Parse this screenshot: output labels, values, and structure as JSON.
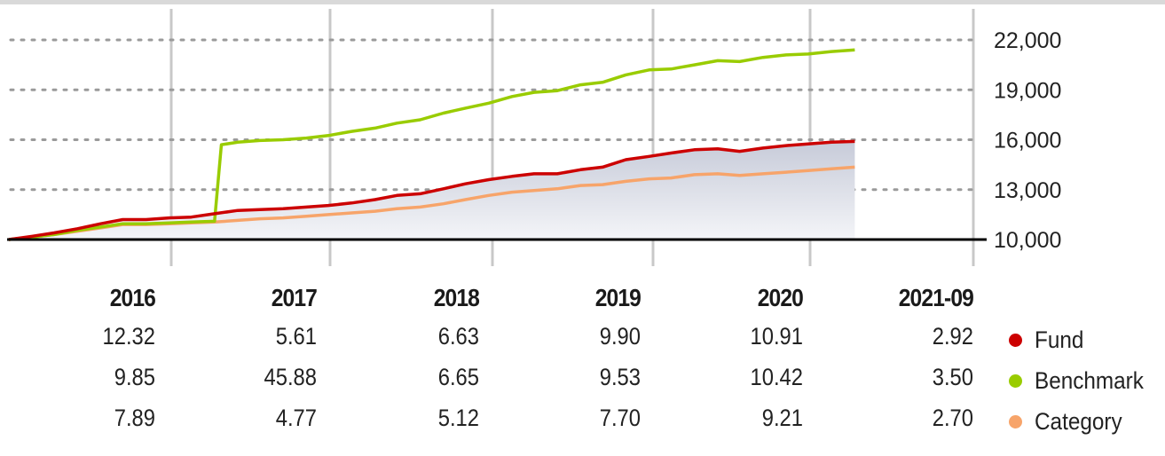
{
  "colors": {
    "fund": "#cc0000",
    "benchmark": "#99cc00",
    "category": "#f7a46a",
    "grid": "#c8c8c8",
    "baseline": "#000000"
  },
  "legend": [
    {
      "label": "Fund",
      "color": "#cc0000"
    },
    {
      "label": "Benchmark",
      "color": "#99cc00"
    },
    {
      "label": "Category",
      "color": "#f7a46a"
    }
  ],
  "returns_table": {
    "years": [
      "2016",
      "2017",
      "2018",
      "2019",
      "2020",
      "2021-09"
    ],
    "rows": [
      {
        "name": "Fund",
        "values": [
          "12.32",
          "5.61",
          "6.63",
          "9.90",
          "10.91",
          "2.92"
        ]
      },
      {
        "name": "Benchmark",
        "values": [
          "9.85",
          "45.88",
          "6.65",
          "9.53",
          "10.42",
          "3.50"
        ]
      },
      {
        "name": "Category",
        "values": [
          "7.89",
          "4.77",
          "5.12",
          "7.70",
          "9.21",
          "2.70"
        ]
      }
    ]
  },
  "chart_data": {
    "type": "line",
    "ylim": [
      10000,
      23000
    ],
    "yticks": [
      "22,000",
      "19,000",
      "16,000",
      "13,000",
      "10,000"
    ],
    "ytick_values": [
      22000,
      19000,
      16000,
      13000,
      10000
    ],
    "xlim": [
      2015.0,
      2021.75
    ],
    "year_boundaries": [
      2016,
      2017,
      2018,
      2019,
      2020,
      2021
    ],
    "grid": true,
    "legend_position": "bottom-right",
    "series": [
      {
        "name": "Fund",
        "color": "#cc0000",
        "points": [
          [
            2015.0,
            10000
          ],
          [
            2015.17,
            10200
          ],
          [
            2015.33,
            10400
          ],
          [
            2015.5,
            10650
          ],
          [
            2015.67,
            10950
          ],
          [
            2015.83,
            11200
          ],
          [
            2016.0,
            11200
          ],
          [
            2016.17,
            11300
          ],
          [
            2016.33,
            11350
          ],
          [
            2016.5,
            11550
          ],
          [
            2016.67,
            11750
          ],
          [
            2016.83,
            11800
          ],
          [
            2017.0,
            11850
          ],
          [
            2017.17,
            11950
          ],
          [
            2017.33,
            12050
          ],
          [
            2017.5,
            12200
          ],
          [
            2017.67,
            12400
          ],
          [
            2017.83,
            12650
          ],
          [
            2018.0,
            12750
          ],
          [
            2018.17,
            13050
          ],
          [
            2018.33,
            13350
          ],
          [
            2018.5,
            13600
          ],
          [
            2018.67,
            13800
          ],
          [
            2018.83,
            13950
          ],
          [
            2019.0,
            13950
          ],
          [
            2019.17,
            14200
          ],
          [
            2019.33,
            14350
          ],
          [
            2019.5,
            14800
          ],
          [
            2019.67,
            15000
          ],
          [
            2019.83,
            15200
          ],
          [
            2020.0,
            15400
          ],
          [
            2020.17,
            15450
          ],
          [
            2020.33,
            15300
          ],
          [
            2020.5,
            15500
          ],
          [
            2020.67,
            15650
          ],
          [
            2020.83,
            15750
          ],
          [
            2021.0,
            15850
          ],
          [
            2021.17,
            15900
          ]
        ]
      },
      {
        "name": "Benchmark",
        "color": "#99cc00",
        "points": [
          [
            2015.0,
            10000
          ],
          [
            2015.17,
            10150
          ],
          [
            2015.33,
            10300
          ],
          [
            2015.5,
            10550
          ],
          [
            2015.67,
            10750
          ],
          [
            2015.83,
            10950
          ],
          [
            2016.0,
            10950
          ],
          [
            2016.17,
            11000
          ],
          [
            2016.33,
            11050
          ],
          [
            2016.5,
            11100
          ],
          [
            2016.55,
            15700
          ],
          [
            2016.67,
            15850
          ],
          [
            2016.83,
            15950
          ],
          [
            2017.0,
            16000
          ],
          [
            2017.17,
            16100
          ],
          [
            2017.33,
            16250
          ],
          [
            2017.5,
            16500
          ],
          [
            2017.67,
            16700
          ],
          [
            2017.83,
            17000
          ],
          [
            2018.0,
            17200
          ],
          [
            2018.17,
            17600
          ],
          [
            2018.33,
            17900
          ],
          [
            2018.5,
            18200
          ],
          [
            2018.67,
            18600
          ],
          [
            2018.83,
            18850
          ],
          [
            2019.0,
            18950
          ],
          [
            2019.17,
            19300
          ],
          [
            2019.33,
            19450
          ],
          [
            2019.5,
            19900
          ],
          [
            2019.67,
            20200
          ],
          [
            2019.83,
            20250
          ],
          [
            2020.0,
            20500
          ],
          [
            2020.17,
            20750
          ],
          [
            2020.33,
            20700
          ],
          [
            2020.5,
            20950
          ],
          [
            2020.67,
            21100
          ],
          [
            2020.83,
            21150
          ],
          [
            2021.0,
            21300
          ],
          [
            2021.17,
            21400
          ]
        ]
      },
      {
        "name": "Category",
        "color": "#f7a46a",
        "points": [
          [
            2015.0,
            10000
          ],
          [
            2015.17,
            10150
          ],
          [
            2015.33,
            10300
          ],
          [
            2015.5,
            10500
          ],
          [
            2015.67,
            10700
          ],
          [
            2015.83,
            10900
          ],
          [
            2016.0,
            10900
          ],
          [
            2016.17,
            10950
          ],
          [
            2016.33,
            11000
          ],
          [
            2016.5,
            11050
          ],
          [
            2016.67,
            11150
          ],
          [
            2016.83,
            11250
          ],
          [
            2017.0,
            11300
          ],
          [
            2017.17,
            11400
          ],
          [
            2017.33,
            11500
          ],
          [
            2017.5,
            11600
          ],
          [
            2017.67,
            11700
          ],
          [
            2017.83,
            11850
          ],
          [
            2018.0,
            11950
          ],
          [
            2018.17,
            12150
          ],
          [
            2018.33,
            12400
          ],
          [
            2018.5,
            12650
          ],
          [
            2018.67,
            12850
          ],
          [
            2018.83,
            12950
          ],
          [
            2019.0,
            13050
          ],
          [
            2019.17,
            13250
          ],
          [
            2019.33,
            13300
          ],
          [
            2019.5,
            13500
          ],
          [
            2019.67,
            13650
          ],
          [
            2019.83,
            13700
          ],
          [
            2020.0,
            13900
          ],
          [
            2020.17,
            13950
          ],
          [
            2020.33,
            13850
          ],
          [
            2020.5,
            13950
          ],
          [
            2020.67,
            14050
          ],
          [
            2020.83,
            14150
          ],
          [
            2021.0,
            14250
          ],
          [
            2021.17,
            14350
          ]
        ]
      }
    ]
  }
}
